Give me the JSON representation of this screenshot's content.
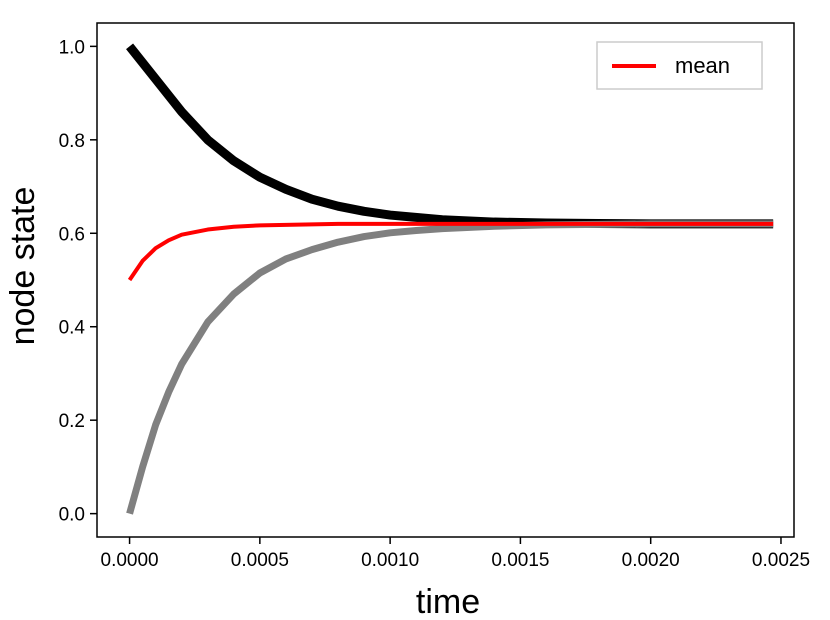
{
  "chart_data": {
    "type": "line",
    "title": "",
    "xlabel": "time",
    "ylabel": "node state",
    "xlim": [
      -0.000125,
      0.00255
    ],
    "ylim": [
      -0.05,
      1.05
    ],
    "x_ticks": [
      0.0,
      0.0005,
      0.001,
      0.0015,
      0.002,
      0.0025
    ],
    "x_tick_labels": [
      "0.0000",
      "0.0005",
      "0.0010",
      "0.0015",
      "0.0020",
      "0.0025"
    ],
    "y_ticks": [
      0.0,
      0.2,
      0.4,
      0.6,
      0.8,
      1.0
    ],
    "y_tick_labels": [
      "0.0",
      "0.2",
      "0.4",
      "0.6",
      "0.8",
      "1.0"
    ],
    "grid": false,
    "legend": {
      "position": "top-right",
      "entries": [
        "mean"
      ]
    },
    "series": [
      {
        "color": "#000000",
        "x": [
          0.0,
          0.0001,
          0.0002,
          0.0003,
          0.0004,
          0.0005,
          0.0006,
          0.0007,
          0.0008,
          0.0009,
          0.001,
          0.0012,
          0.0014,
          0.0016,
          0.0018,
          0.002,
          0.0022,
          0.00247
        ],
        "y": [
          1.0,
          0.93,
          0.86,
          0.8,
          0.755,
          0.72,
          0.694,
          0.673,
          0.658,
          0.647,
          0.639,
          0.629,
          0.624,
          0.622,
          0.621,
          0.62,
          0.62,
          0.62
        ]
      },
      {
        "color": "#808080",
        "x": [
          0.0,
          5e-05,
          0.0001,
          0.00015,
          0.0002,
          0.0003,
          0.0004,
          0.0005,
          0.0006,
          0.0007,
          0.0008,
          0.0009,
          0.001,
          0.0011,
          0.0012,
          0.0014,
          0.0016,
          0.0018,
          0.002,
          0.0022,
          0.00247
        ],
        "y": [
          0.0,
          0.1,
          0.19,
          0.26,
          0.32,
          0.41,
          0.47,
          0.515,
          0.545,
          0.565,
          0.581,
          0.593,
          0.601,
          0.606,
          0.61,
          0.615,
          0.618,
          0.619,
          0.62,
          0.62,
          0.62
        ]
      },
      {
        "name": "mean",
        "color": "#ff0000",
        "x": [
          0.0,
          5e-05,
          0.0001,
          0.00015,
          0.0002,
          0.0003,
          0.0004,
          0.0005,
          0.0006,
          0.0007,
          0.0008,
          0.001,
          0.0012,
          0.0015,
          0.002,
          0.00247
        ],
        "y": [
          0.5,
          0.541,
          0.568,
          0.585,
          0.597,
          0.608,
          0.614,
          0.617,
          0.618,
          0.619,
          0.62,
          0.62,
          0.62,
          0.62,
          0.62,
          0.62
        ]
      }
    ]
  }
}
